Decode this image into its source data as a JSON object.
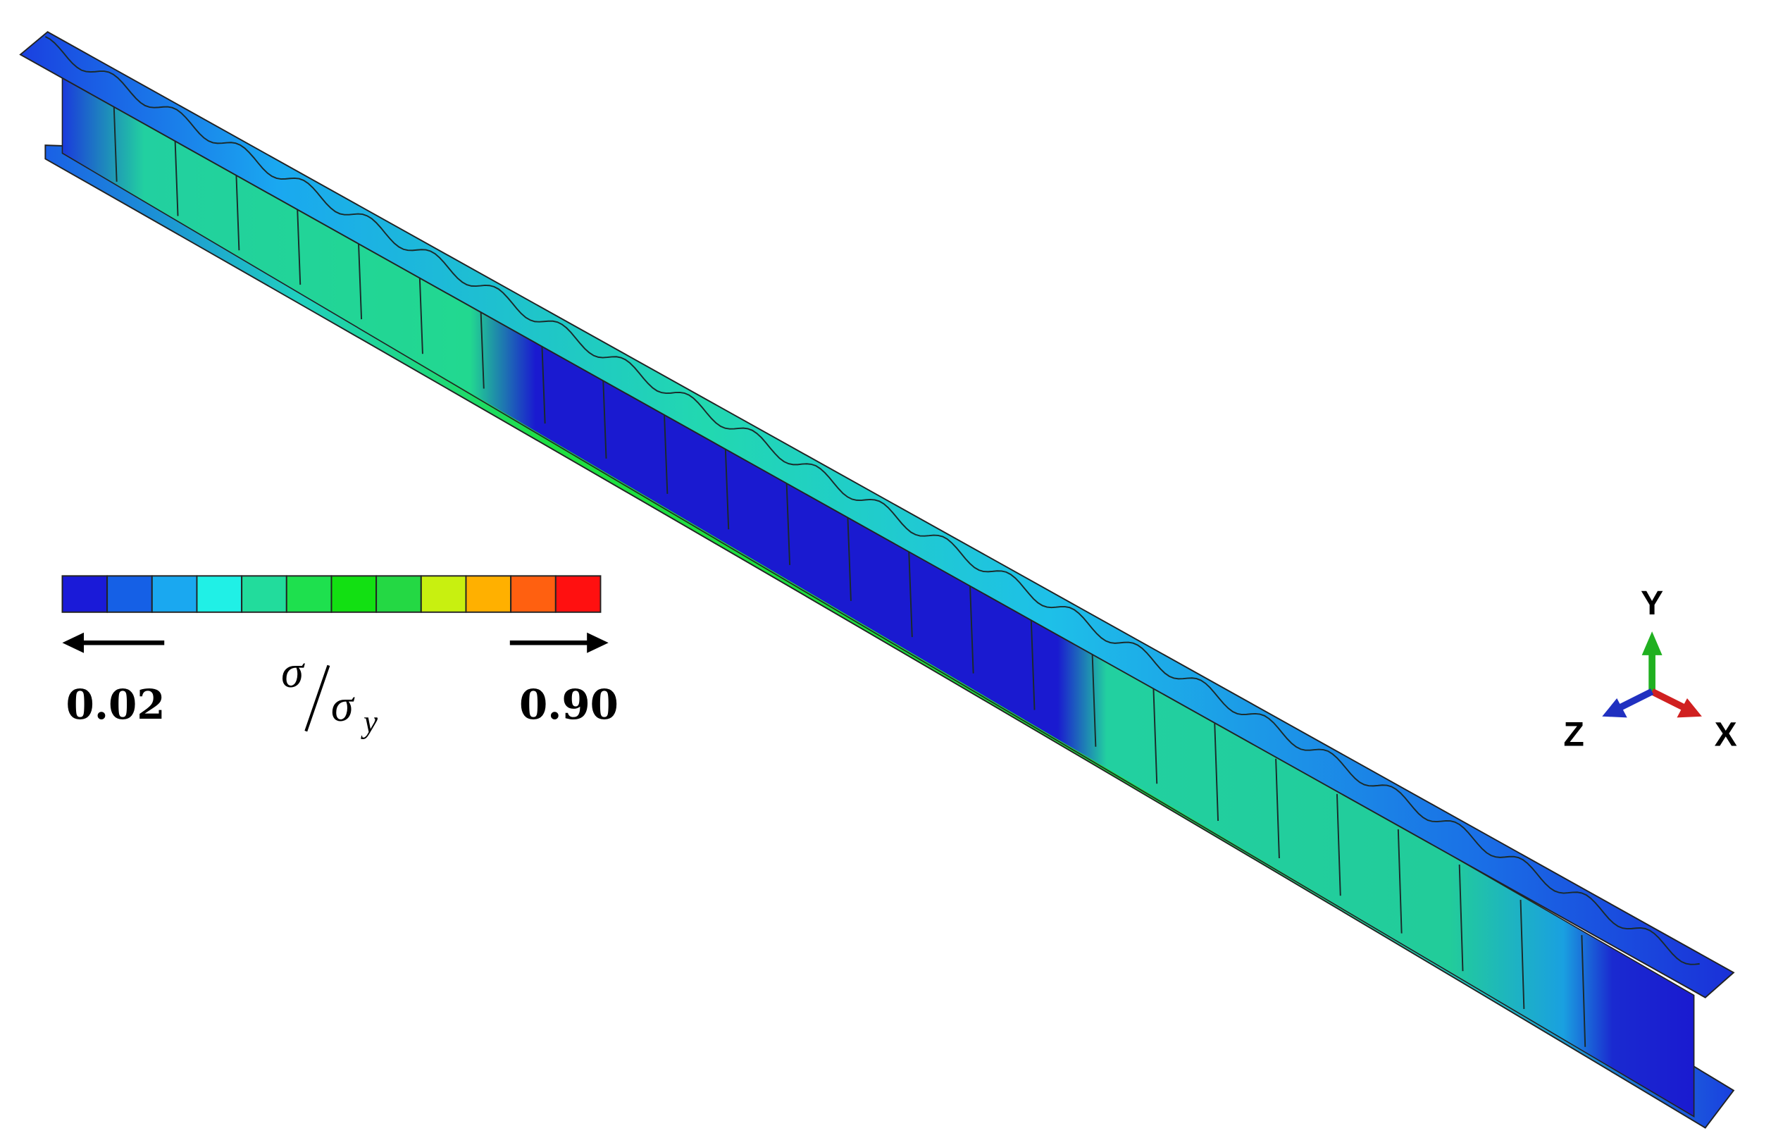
{
  "legend": {
    "colors": [
      "#1a1ad8",
      "#1560e6",
      "#1aa8f0",
      "#20f0e6",
      "#22dc9c",
      "#1ee04e",
      "#12e012",
      "#24d844",
      "#c8f010",
      "#ffb000",
      "#ff6010",
      "#ff1010"
    ],
    "min_label": "0.02",
    "max_label": "0.90",
    "quantity": {
      "numerator": "σ",
      "denominator": "σ",
      "subscript": "y"
    }
  },
  "axes": {
    "y": "Y",
    "z": "Z",
    "x": "X"
  }
}
